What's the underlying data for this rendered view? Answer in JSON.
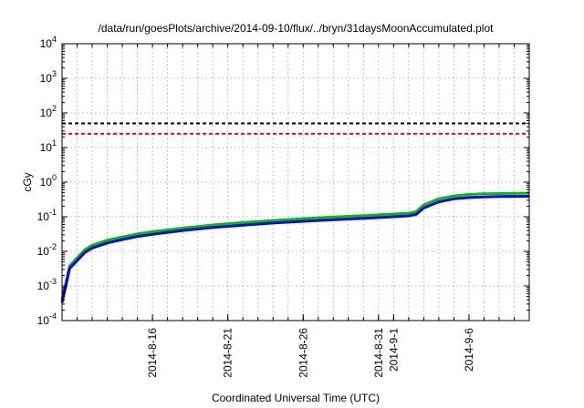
{
  "chart_data": {
    "type": "line",
    "title": "/data/run/goesPlots/archive/2014-09-10/flux/../bryn/31daysMoonAccumulated.plot",
    "xlabel": "Coordinated Universal Time (UTC)",
    "ylabel": "cGy",
    "yscale": "log",
    "ylim": [
      0.0001,
      10000
    ],
    "xlim": [
      "2014-08-10",
      "2014-09-10"
    ],
    "grid": true,
    "y_ticks": [
      {
        "value": 0.0001,
        "base": "10",
        "exp": "-4"
      },
      {
        "value": 0.001,
        "base": "10",
        "exp": "-3"
      },
      {
        "value": 0.01,
        "base": "10",
        "exp": "-2"
      },
      {
        "value": 0.1,
        "base": "10",
        "exp": "-1"
      },
      {
        "value": 1,
        "base": "10",
        "exp": "0"
      },
      {
        "value": 10,
        "base": "10",
        "exp": "1"
      },
      {
        "value": 100,
        "base": "10",
        "exp": "2"
      },
      {
        "value": 1000,
        "base": "10",
        "exp": "3"
      },
      {
        "value": 10000,
        "base": "10",
        "exp": "4"
      }
    ],
    "x_ticks": [
      {
        "value": "2014-08-16",
        "label": "2014-8-16"
      },
      {
        "value": "2014-08-21",
        "label": "2014-8-21"
      },
      {
        "value": "2014-08-26",
        "label": "2014-8-26"
      },
      {
        "value": "2014-08-31",
        "label": "2014-8-31"
      },
      {
        "value": "2014-09-01",
        "label": "2014-9-1"
      },
      {
        "value": "2014-09-06",
        "label": "2014-9-6"
      }
    ],
    "reference_lines": [
      {
        "value": 50,
        "color": "#000000",
        "style": "dashed"
      },
      {
        "value": 25,
        "color": "#ff0000",
        "style": "dashed"
      }
    ],
    "series": [
      {
        "color": "#00c000",
        "x": [
          "2014-08-10T00:00",
          "2014-08-10T06:00",
          "2014-08-10T12:00",
          "2014-08-11T00:00",
          "2014-08-11T12:00",
          "2014-08-12T00:00",
          "2014-08-13T00:00",
          "2014-08-14T00:00",
          "2014-08-15T00:00",
          "2014-08-16T00:00",
          "2014-08-18T00:00",
          "2014-08-20T00:00",
          "2014-08-22T00:00",
          "2014-08-24T00:00",
          "2014-08-26T00:00",
          "2014-08-28T00:00",
          "2014-08-30T00:00",
          "2014-09-01T00:00",
          "2014-09-02T00:00",
          "2014-09-02T12:00",
          "2014-09-03T00:00",
          "2014-09-04T00:00",
          "2014-09-05T00:00",
          "2014-09-06T00:00",
          "2014-09-07T00:00",
          "2014-09-08T00:00",
          "2014-09-10T00:00"
        ],
        "y": [
          0.0004,
          0.0012,
          0.0038,
          0.0065,
          0.011,
          0.015,
          0.021,
          0.026,
          0.032,
          0.037,
          0.047,
          0.058,
          0.068,
          0.078,
          0.088,
          0.098,
          0.108,
          0.12,
          0.127,
          0.14,
          0.22,
          0.33,
          0.4,
          0.44,
          0.46,
          0.47,
          0.48
        ]
      },
      {
        "color": "#0000ff",
        "x": [
          "2014-08-10T00:00",
          "2014-08-10T06:00",
          "2014-08-10T12:00",
          "2014-08-11T00:00",
          "2014-08-11T12:00",
          "2014-08-12T00:00",
          "2014-08-13T00:00",
          "2014-08-14T00:00",
          "2014-08-15T00:00",
          "2014-08-16T00:00",
          "2014-08-18T00:00",
          "2014-08-20T00:00",
          "2014-08-22T00:00",
          "2014-08-24T00:00",
          "2014-08-26T00:00",
          "2014-08-28T00:00",
          "2014-08-30T00:00",
          "2014-09-01T00:00",
          "2014-09-02T00:00",
          "2014-09-02T12:00",
          "2014-09-03T00:00",
          "2014-09-04T00:00",
          "2014-09-05T00:00",
          "2014-09-06T00:00",
          "2014-09-07T00:00",
          "2014-09-08T00:00",
          "2014-09-10T00:00"
        ],
        "y": [
          0.00033,
          0.001,
          0.0032,
          0.0054,
          0.0092,
          0.0125,
          0.0175,
          0.022,
          0.027,
          0.031,
          0.04,
          0.049,
          0.057,
          0.066,
          0.074,
          0.082,
          0.09,
          0.1,
          0.106,
          0.117,
          0.18,
          0.27,
          0.33,
          0.36,
          0.375,
          0.385,
          0.39
        ]
      }
    ]
  }
}
